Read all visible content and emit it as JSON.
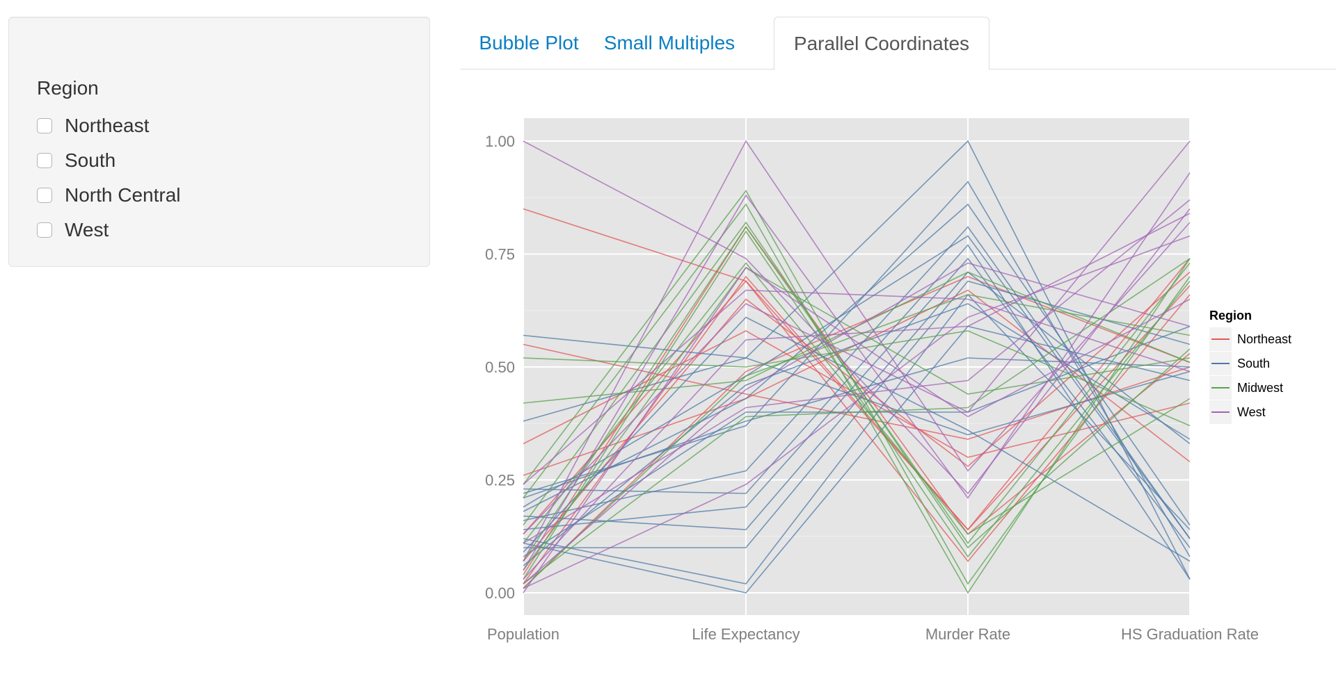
{
  "sidebar": {
    "region_label": "Region",
    "options": [
      {
        "label": "Northeast",
        "checked": false
      },
      {
        "label": "South",
        "checked": false
      },
      {
        "label": "North Central",
        "checked": false
      },
      {
        "label": "West",
        "checked": false
      }
    ]
  },
  "tabs": [
    {
      "label": "Bubble Plot",
      "active": false
    },
    {
      "label": "Small Multiples",
      "active": false
    },
    {
      "label": "Parallel Coordinates",
      "active": true
    }
  ],
  "chart_data": {
    "type": "line",
    "categories": [
      "Population",
      "Life Expectancy",
      "Murder Rate",
      "HS Graduation Rate"
    ],
    "ylim": [
      0,
      1
    ],
    "yticks": [
      "0.00",
      "0.25",
      "0.50",
      "0.75",
      "1.00"
    ],
    "grid": true,
    "legend": {
      "title": "Region",
      "position": "right",
      "entries": [
        "Northeast",
        "South",
        "Midwest",
        "West"
      ]
    },
    "colors": {
      "Northeast": "#e15759",
      "South": "#4e79a7",
      "Midwest": "#59a14f",
      "West": "#a163b5"
    },
    "series": [
      {
        "group": "Northeast",
        "values": [
          0.85,
          0.69,
          0.14,
          0.74
        ]
      },
      {
        "group": "Northeast",
        "values": [
          0.55,
          0.44,
          0.34,
          0.5
        ]
      },
      {
        "group": "Northeast",
        "values": [
          0.33,
          0.58,
          0.3,
          0.42
        ]
      },
      {
        "group": "Northeast",
        "values": [
          0.26,
          0.43,
          0.67,
          0.29
        ]
      },
      {
        "group": "Northeast",
        "values": [
          0.13,
          0.69,
          0.07,
          0.66
        ]
      },
      {
        "group": "Northeast",
        "values": [
          0.07,
          0.65,
          0.28,
          0.71
        ]
      },
      {
        "group": "Northeast",
        "values": [
          0.04,
          0.81,
          0.13,
          0.53
        ]
      },
      {
        "group": "Northeast",
        "values": [
          0.02,
          0.7,
          0.14,
          0.68
        ]
      },
      {
        "group": "Northeast",
        "values": [
          0.01,
          0.49,
          0.7,
          0.51
        ]
      },
      {
        "group": "South",
        "values": [
          0.57,
          0.52,
          0.35,
          0.49
        ]
      },
      {
        "group": "South",
        "values": [
          0.38,
          0.52,
          1.0,
          0.03
        ]
      },
      {
        "group": "South",
        "values": [
          0.22,
          0.37,
          0.91,
          0.08
        ]
      },
      {
        "group": "South",
        "values": [
          0.18,
          0.43,
          0.86,
          0.15
        ]
      },
      {
        "group": "South",
        "values": [
          0.16,
          0.27,
          0.81,
          0.12
        ]
      },
      {
        "group": "South",
        "values": [
          0.23,
          0.22,
          0.77,
          0.03
        ]
      },
      {
        "group": "South",
        "values": [
          0.14,
          0.19,
          0.74,
          0.1
        ]
      },
      {
        "group": "South",
        "values": [
          0.17,
          0.14,
          0.71,
          0.33
        ]
      },
      {
        "group": "South",
        "values": [
          0.1,
          0.1,
          0.69,
          0.55
        ]
      },
      {
        "group": "South",
        "values": [
          0.12,
          0.02,
          0.66,
          0.14
        ]
      },
      {
        "group": "South",
        "values": [
          0.11,
          0.0,
          0.59,
          0.47
        ]
      },
      {
        "group": "South",
        "values": [
          0.09,
          0.61,
          0.36,
          0.07
        ]
      },
      {
        "group": "South",
        "values": [
          0.21,
          0.38,
          0.52,
          0.5
        ]
      },
      {
        "group": "South",
        "values": [
          0.06,
          0.46,
          0.64,
          0.34
        ]
      },
      {
        "group": "South",
        "values": [
          0.19,
          0.48,
          0.79,
          0.12
        ]
      },
      {
        "group": "South",
        "values": [
          0.08,
          0.4,
          0.4,
          0.59
        ]
      },
      {
        "group": "Midwest",
        "values": [
          0.52,
          0.5,
          0.58,
          0.37
        ]
      },
      {
        "group": "Midwest",
        "values": [
          0.42,
          0.47,
          0.71,
          0.51
        ]
      },
      {
        "group": "Midwest",
        "values": [
          0.24,
          0.89,
          0.02,
          0.7
        ]
      },
      {
        "group": "Midwest",
        "values": [
          0.21,
          0.86,
          0.0,
          0.74
        ]
      },
      {
        "group": "Midwest",
        "values": [
          0.15,
          0.82,
          0.1,
          0.54
        ]
      },
      {
        "group": "Midwest",
        "values": [
          0.11,
          0.73,
          0.13,
          0.43
        ]
      },
      {
        "group": "Midwest",
        "values": [
          0.07,
          0.81,
          0.11,
          0.73
        ]
      },
      {
        "group": "Midwest",
        "values": [
          0.05,
          0.72,
          0.44,
          0.52
        ]
      },
      {
        "group": "Midwest",
        "values": [
          0.03,
          0.8,
          0.08,
          0.69
        ]
      },
      {
        "group": "Midwest",
        "values": [
          0.02,
          0.39,
          0.41,
          0.74
        ]
      },
      {
        "group": "Midwest",
        "values": [
          0.01,
          0.48,
          0.66,
          0.57
        ]
      },
      {
        "group": "West",
        "values": [
          1.0,
          0.74,
          0.22,
          0.85
        ]
      },
      {
        "group": "West",
        "values": [
          0.24,
          0.67,
          0.65,
          0.49
        ]
      },
      {
        "group": "West",
        "values": [
          0.13,
          0.64,
          0.4,
          1.0
        ]
      },
      {
        "group": "West",
        "values": [
          0.11,
          0.41,
          0.47,
          0.87
        ]
      },
      {
        "group": "West",
        "values": [
          0.07,
          1.0,
          0.27,
          0.82
        ]
      },
      {
        "group": "West",
        "values": [
          0.05,
          0.88,
          0.21,
          0.93
        ]
      },
      {
        "group": "West",
        "values": [
          0.03,
          0.56,
          0.59,
          0.84
        ]
      },
      {
        "group": "West",
        "values": [
          0.02,
          0.45,
          0.73,
          0.59
        ]
      },
      {
        "group": "West",
        "values": [
          0.01,
          0.24,
          0.61,
          0.79
        ]
      },
      {
        "group": "West",
        "values": [
          0.0,
          0.72,
          0.39,
          0.65
        ]
      }
    ]
  }
}
